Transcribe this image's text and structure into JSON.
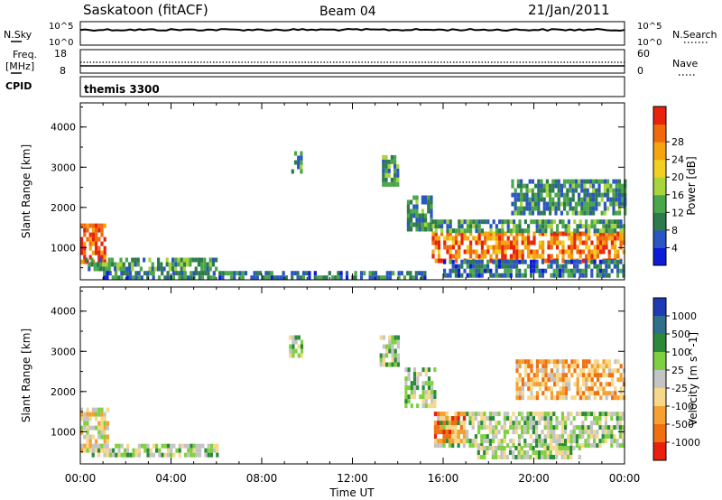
{
  "header": {
    "site": "Saskatoon (fitACF)",
    "beam": "Beam 04",
    "date": "21/Jan/2011"
  },
  "strip_labels": {
    "nsky": "N.Sky",
    "nsky_hi": "10^5",
    "nsky_lo": "10^0",
    "nsearch": "N.Search",
    "nsearch_hi": "10^5",
    "nsearch_lo": "10^0",
    "freq_top": "Freq.",
    "freq_unit": "[MHz]",
    "freq_hi": "18",
    "freq_lo": "8",
    "nave": "Nave",
    "nave_hi": "60",
    "nave_lo": "0",
    "cpid": "CPID",
    "cpid_value": "themis 3300"
  },
  "chart_data": [
    {
      "type": "heatmap",
      "panel": "power",
      "ylabel": "Slant Range [km]",
      "ylim": [
        200,
        4600
      ],
      "y_ticks": [
        "1000",
        "2000",
        "3000",
        "4000"
      ],
      "colorbar_label": "Power [dB]",
      "colorbar_ticks": [
        "4",
        "8",
        "12",
        "16",
        "20",
        "24",
        "28"
      ],
      "colorbar_colors": [
        "#0b1bd6",
        "#2a55c2",
        "#2d7a4c",
        "#4aa64a",
        "#a8d43c",
        "#f0d020",
        "#f5a30f",
        "#f06a0c",
        "#e8220c"
      ],
      "regions": [
        {
          "t0": 0.0,
          "t1": 1.1,
          "r0": 600,
          "r1": 1600,
          "level": 0.85
        },
        {
          "t0": 0.2,
          "t1": 6.0,
          "r0": 450,
          "r1": 750,
          "level": 0.35
        },
        {
          "t0": 1.0,
          "t1": 15.2,
          "r0": 250,
          "r1": 420,
          "level": 0.25
        },
        {
          "t0": 9.3,
          "t1": 9.8,
          "r0": 2900,
          "r1": 3400,
          "level": 0.3
        },
        {
          "t0": 13.3,
          "t1": 14.0,
          "r0": 2600,
          "r1": 3300,
          "level": 0.35
        },
        {
          "t0": 14.4,
          "t1": 15.5,
          "r0": 1500,
          "r1": 2300,
          "level": 0.3
        },
        {
          "t0": 15.5,
          "t1": 24.0,
          "r0": 700,
          "r1": 1400,
          "level": 0.8
        },
        {
          "t0": 15.5,
          "t1": 24.0,
          "r0": 1400,
          "r1": 1700,
          "level": 0.35
        },
        {
          "t0": 19.0,
          "t1": 24.0,
          "r0": 1900,
          "r1": 2700,
          "level": 0.3
        },
        {
          "t0": 16.0,
          "t1": 24.0,
          "r0": 300,
          "r1": 700,
          "level": 0.25
        }
      ]
    },
    {
      "type": "heatmap",
      "panel": "velocity",
      "ylabel": "Slant Range [km]",
      "ylim": [
        200,
        4600
      ],
      "y_ticks": [
        "1000",
        "2000",
        "3000",
        "4000"
      ],
      "colorbar_label": "Velocity [m s^-1]",
      "colorbar_ticks": [
        "1000",
        "500",
        "100",
        "25",
        "-25",
        "-100",
        "-500",
        "-1000"
      ],
      "colorbar_colors": [
        "#1e3ab4",
        "#2f6e8c",
        "#2a8a3a",
        "#7fd040",
        "#c4c4c4",
        "#f5d88a",
        "#f5a030",
        "#f07010",
        "#e8200c"
      ],
      "regions": [
        {
          "t0": 0.0,
          "t1": 1.2,
          "r0": 500,
          "r1": 1600,
          "level": 0.55
        },
        {
          "t0": 0.5,
          "t1": 6.0,
          "r0": 450,
          "r1": 700,
          "level": 0.45
        },
        {
          "t0": 9.2,
          "t1": 9.8,
          "r0": 2900,
          "r1": 3400,
          "level": 0.45
        },
        {
          "t0": 13.2,
          "t1": 14.0,
          "r0": 2700,
          "r1": 3400,
          "level": 0.45
        },
        {
          "t0": 14.3,
          "t1": 15.6,
          "r0": 1600,
          "r1": 2600,
          "level": 0.45
        },
        {
          "t0": 15.6,
          "t1": 24.0,
          "r0": 700,
          "r1": 1500,
          "level": 0.45
        },
        {
          "t0": 15.6,
          "t1": 17.0,
          "r0": 800,
          "r1": 1500,
          "level": 0.75
        },
        {
          "t0": 19.2,
          "t1": 24.0,
          "r0": 1900,
          "r1": 2800,
          "level": 0.7
        },
        {
          "t0": 17.5,
          "t1": 22.0,
          "r0": 350,
          "r1": 650,
          "level": 0.45
        }
      ]
    }
  ],
  "time_axis": {
    "label": "Time UT",
    "ticks": [
      "00:00",
      "04:00",
      "08:00",
      "12:00",
      "16:00",
      "20:00",
      "00:00"
    ],
    "range_hours": [
      0,
      24
    ]
  }
}
